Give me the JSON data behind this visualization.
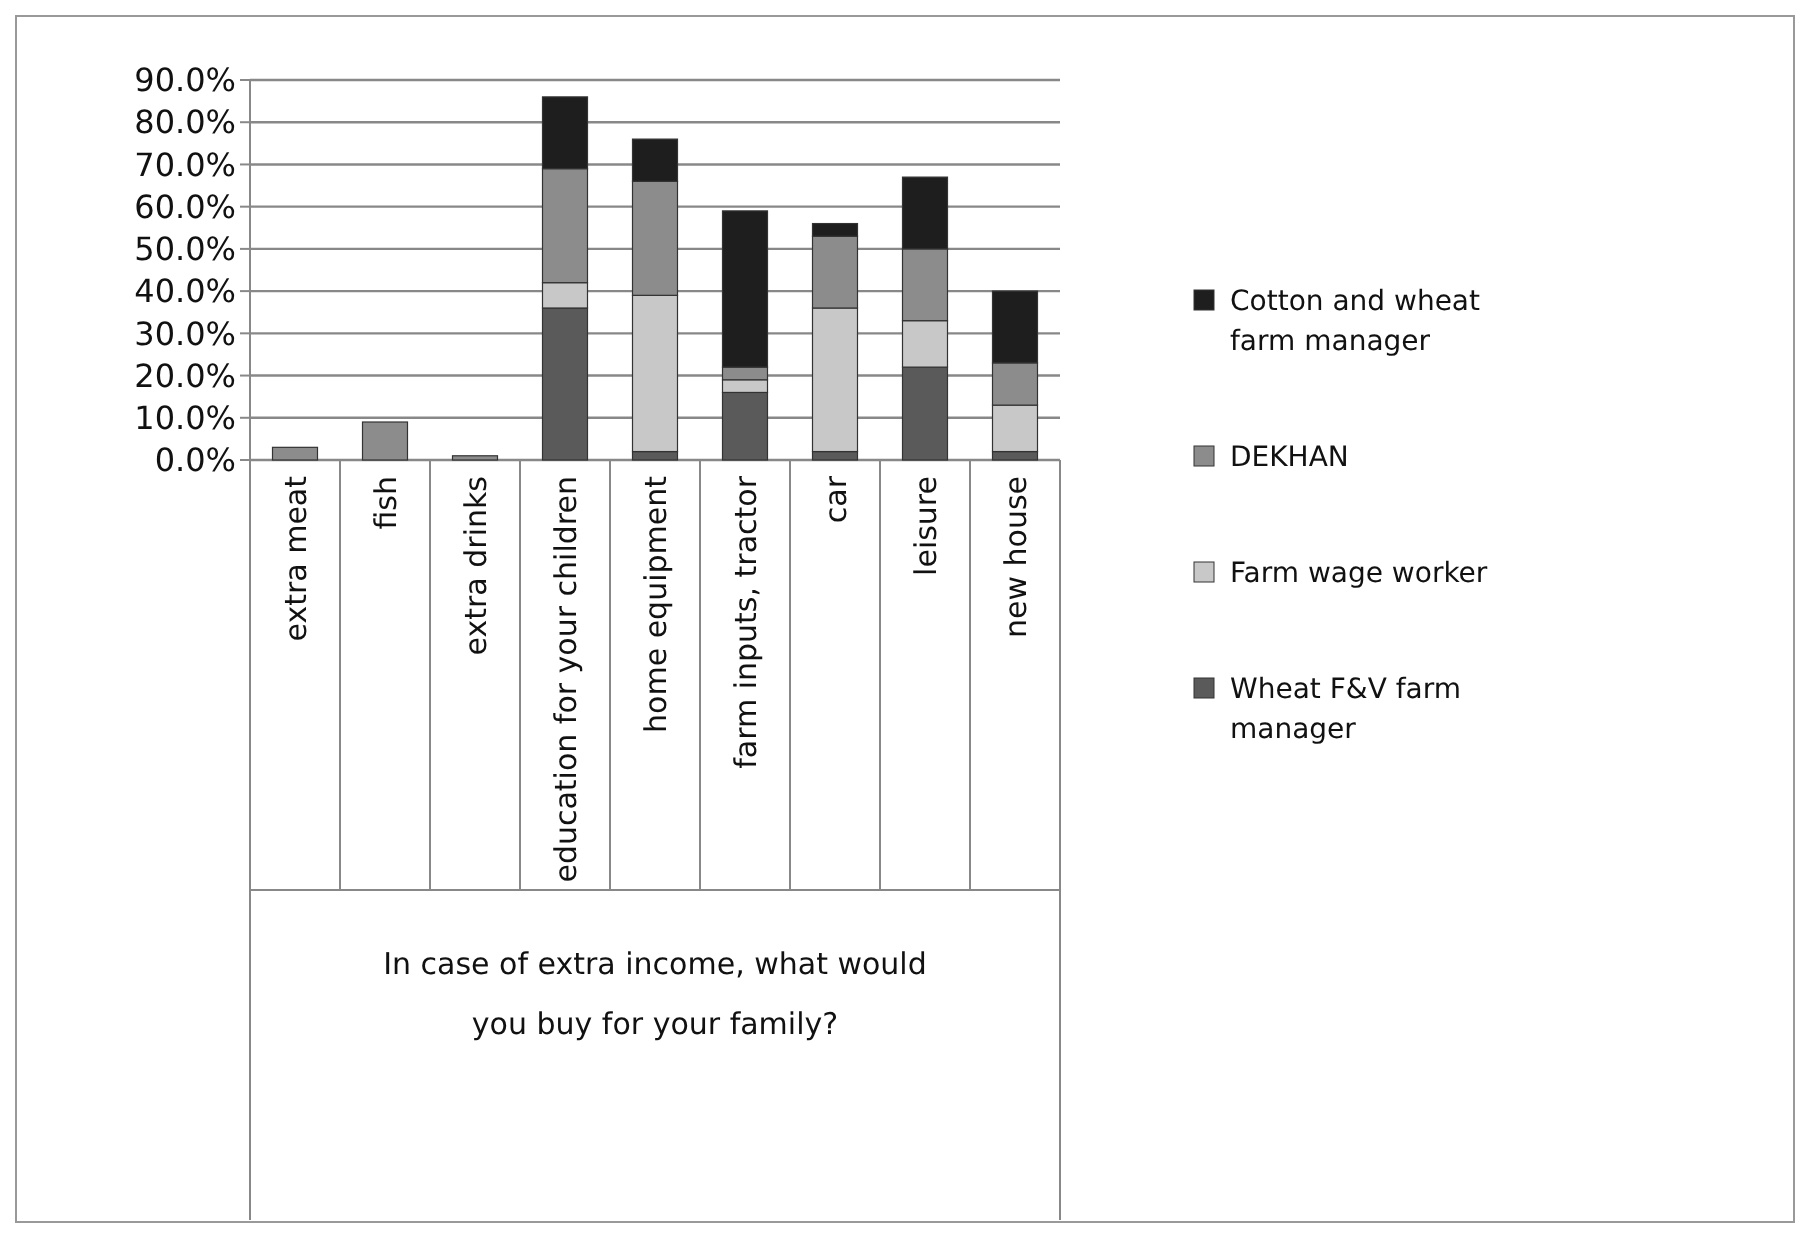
{
  "chart_data": {
    "type": "bar",
    "stacked": true,
    "xlabel": "In case of extra income, what would you buy for your family?",
    "categories": [
      "extra meat",
      "fish",
      "extra drinks",
      "education for your children",
      "home equipment",
      "farm inputs, tractor",
      "car",
      "leisure",
      "new house"
    ],
    "series": [
      {
        "name": "Wheat F&V farm manager",
        "color": "#5a5a5a",
        "values": [
          0,
          0,
          0,
          36,
          2,
          16,
          2,
          22,
          2
        ]
      },
      {
        "name": "Farm wage worker",
        "color": "#c8c8c8",
        "values": [
          0,
          0,
          0,
          6,
          37,
          3,
          34,
          11,
          11
        ]
      },
      {
        "name": "DEKHAN",
        "color": "#8c8c8c",
        "values": [
          3,
          9,
          1,
          27,
          27,
          3,
          17,
          17,
          10
        ]
      },
      {
        "name": "Cotton and wheat farm manager",
        "color": "#1e1e1e",
        "values": [
          0,
          0,
          0,
          17,
          10,
          37,
          3,
          17,
          17
        ]
      }
    ],
    "ylim": [
      0,
      90
    ],
    "yticks": [
      {
        "value": 0,
        "label": "0.0%"
      },
      {
        "value": 10,
        "label": "10.0%"
      },
      {
        "value": 20,
        "label": "20.0%"
      },
      {
        "value": 30,
        "label": "30.0%"
      },
      {
        "value": 40,
        "label": "40.0%"
      },
      {
        "value": 50,
        "label": "50.0%"
      },
      {
        "value": 60,
        "label": "60.0%"
      },
      {
        "value": 70,
        "label": "70.0%"
      },
      {
        "value": 80,
        "label": "80.0%"
      },
      {
        "value": 90,
        "label": "90.0%"
      }
    ],
    "grid": "y",
    "legend": "right"
  }
}
